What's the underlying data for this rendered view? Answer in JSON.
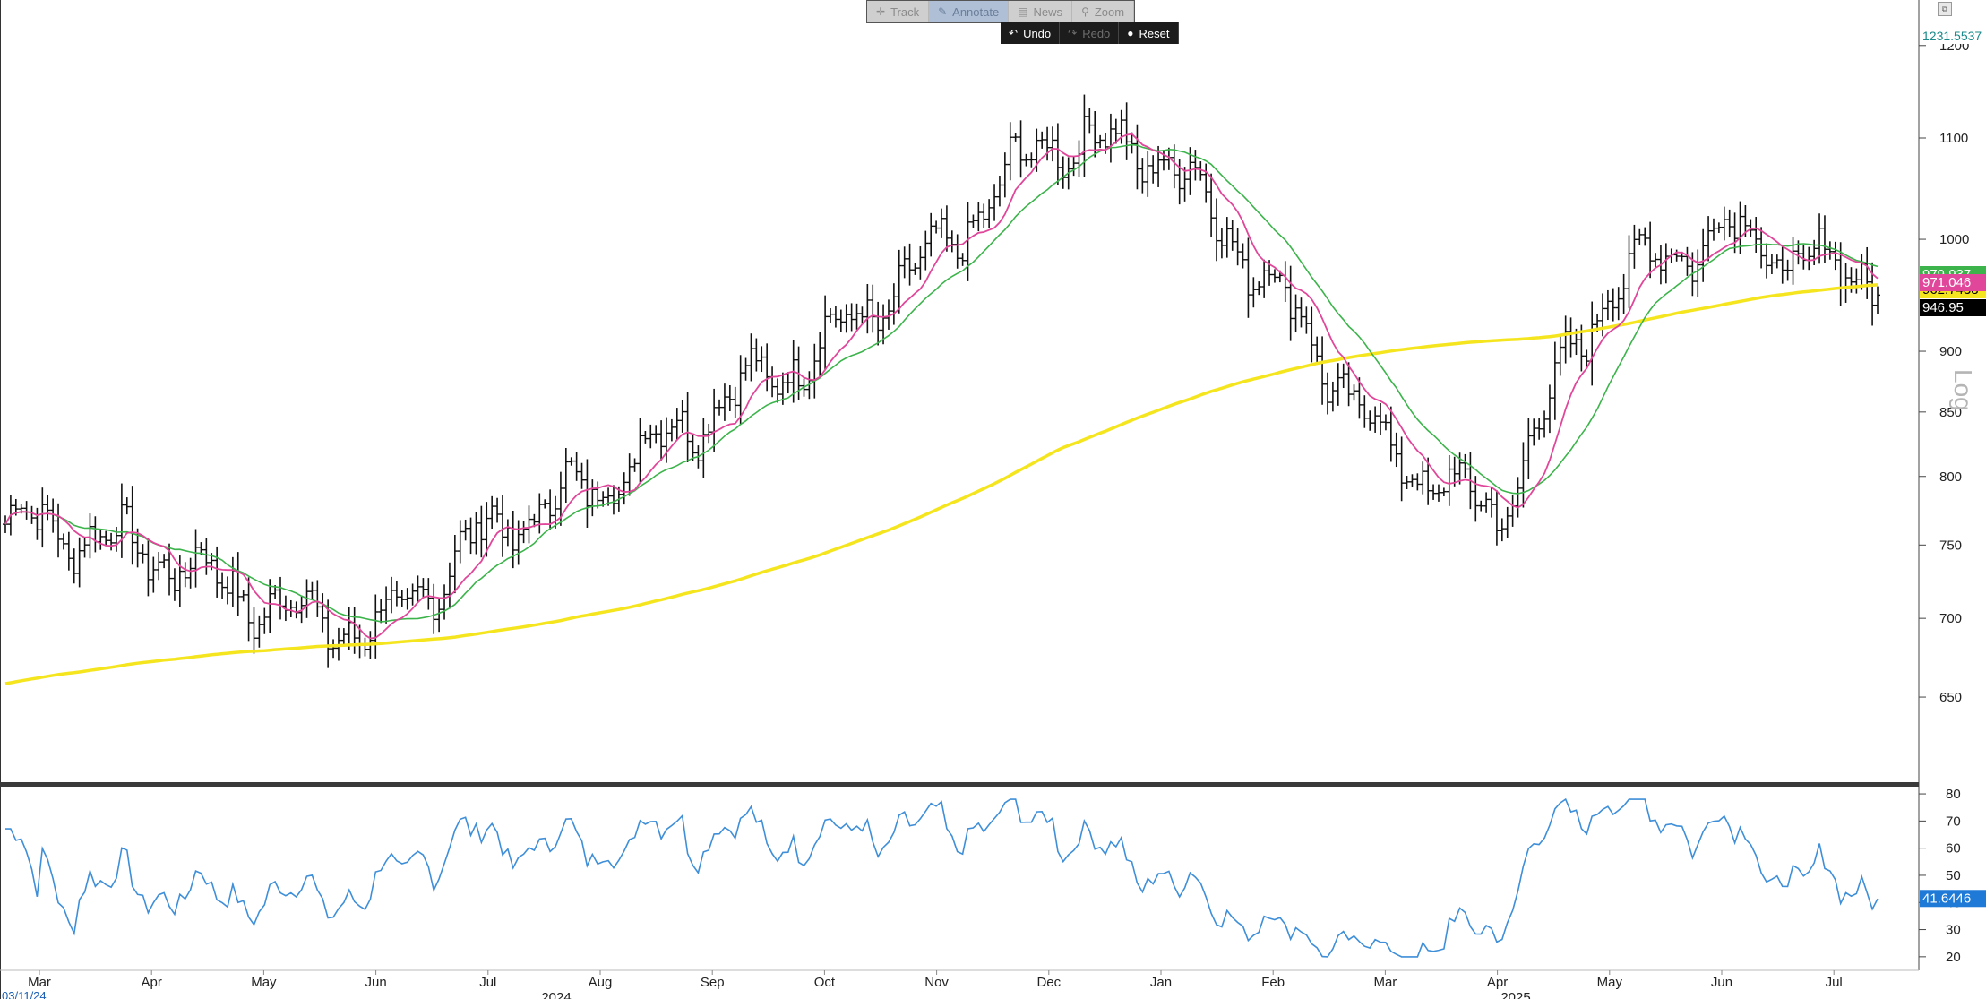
{
  "toolbar": {
    "items": [
      "Track",
      "Annotate",
      "News",
      "Zoom"
    ],
    "undo": "Undo",
    "redo": "Redo",
    "reset": "Reset"
  },
  "axis": {
    "scale_label": "Log",
    "price_top_label": "1231.5537",
    "x_year_labels": [
      {
        "label": "2024"
      },
      {
        "label": "2025"
      }
    ],
    "start_date_label": "03/11/24"
  },
  "colors": {
    "price_bars": "#111111",
    "ma_pink": "#e0479a",
    "ma_green": "#3cb44b",
    "ma_yellow": "#f5e51f",
    "rsi": "#3f8fd8",
    "badge_green": "#3cb44b",
    "badge_pink": "#e0479a",
    "badge_yellow": "#f5e51f",
    "badge_black": "#000000",
    "badge_blue": "#1e7ad6"
  },
  "chart_data": {
    "type": "line",
    "title": "",
    "price_panel": {
      "scale": "log",
      "ylim": [
        600,
        1231.5537
      ],
      "yticks": [
        650,
        700,
        750,
        800,
        850,
        900,
        1000,
        1100,
        1200
      ],
      "months": [
        "Mar",
        "Apr",
        "May",
        "Jun",
        "Jul",
        "Aug",
        "Sep",
        "Oct",
        "Nov",
        "Dec",
        "Jan",
        "Feb",
        "Mar",
        "Apr",
        "May",
        "Jun",
        "Jul"
      ],
      "price_close_monthly_approx": [
        765,
        745,
        710,
        690,
        760,
        795,
        855,
        905,
        985,
        1100,
        1085,
        955,
        820,
        770,
        960,
        1010,
        970
      ],
      "last_values": {
        "price": "946.95",
        "ma_pink": "971.046",
        "ma_green": "979.937",
        "ma_yellow": "962.7438"
      },
      "series": [
        {
          "name": "",
          "color": "#e0479a",
          "kind": "short moving average"
        },
        {
          "name": "",
          "color": "#3cb44b",
          "kind": "medium moving average"
        },
        {
          "name": "",
          "color": "#f5e51f",
          "kind": "long moving average"
        }
      ]
    },
    "rsi_panel": {
      "ylim": [
        15,
        82
      ],
      "yticks": [
        20,
        30,
        40,
        50,
        60,
        70,
        80
      ],
      "last_value": "41.6446"
    }
  }
}
